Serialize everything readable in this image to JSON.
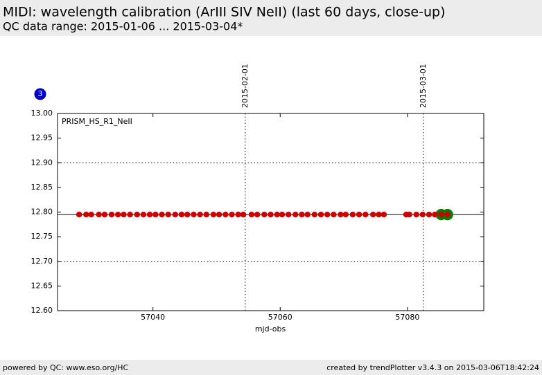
{
  "chart_data": {
    "type": "scatter",
    "title": "MIDI: wavelength calibration (ArIII SIV NeII) (last 60 days, close-up)",
    "subtitle": "QC data range: 2015-01-06 ... 2015-03-04*",
    "badge": "3",
    "panel_label": "PRISM_HS_R1_NeII",
    "xlabel": "mjd-obs",
    "xlim": [
      57025,
      57092
    ],
    "ylim": [
      12.6,
      13.0
    ],
    "xticks": [
      57040,
      57060,
      57080
    ],
    "yticks": [
      {
        "value": 12.6,
        "label": "12.60"
      },
      {
        "value": 12.65,
        "label": "12.65"
      },
      {
        "value": 12.7,
        "label": "12.70"
      },
      {
        "value": 12.75,
        "label": "12.75"
      },
      {
        "value": 12.8,
        "label": "12.80"
      },
      {
        "value": 12.85,
        "label": "12.85"
      },
      {
        "value": 12.9,
        "label": "12.90"
      },
      {
        "value": 12.95,
        "label": "12.95"
      },
      {
        "value": 13.0,
        "label": "13.00"
      }
    ],
    "grid_y": [
      12.7,
      12.9
    ],
    "reference_line": 12.795,
    "date_markers": [
      {
        "label": "2015-02-01",
        "x": 57054.5
      },
      {
        "label": "2015-03-01",
        "x": 57082.5
      }
    ],
    "series": [
      {
        "color": "#cc0000",
        "x": [
          57028.4,
          57029.5,
          57030.3,
          57031.5,
          57032.4,
          57033.5,
          57034.5,
          57035.4,
          57036.4,
          57037.5,
          57038.5,
          57039.5,
          57040.4,
          57041.4,
          57042.4,
          57043.5,
          57044.5,
          57045.4,
          57046.4,
          57047.4,
          57048.4,
          57049.5,
          57050.4,
          57051.4,
          57052.4,
          57053.4,
          57054.2,
          57055.5,
          57056.4,
          57057.5,
          57058.5,
          57059.5,
          57060.3,
          57061.3,
          57062.4,
          57063.4,
          57064.3,
          57065.4,
          57066.4,
          57067.4,
          57068.4,
          57069.5,
          57070.3,
          57071.4,
          57072.4,
          57073.4,
          57074.6,
          57075.5,
          57076.3,
          57079.8,
          57080.3,
          57081.4,
          57082.4,
          57083.4,
          57084.3,
          57085.3,
          57086.3
        ],
        "values": [
          12.795,
          12.795,
          12.795,
          12.795,
          12.795,
          12.795,
          12.795,
          12.795,
          12.795,
          12.795,
          12.795,
          12.795,
          12.795,
          12.795,
          12.795,
          12.795,
          12.795,
          12.795,
          12.795,
          12.795,
          12.795,
          12.795,
          12.795,
          12.795,
          12.795,
          12.795,
          12.795,
          12.795,
          12.795,
          12.795,
          12.795,
          12.795,
          12.795,
          12.795,
          12.795,
          12.795,
          12.795,
          12.795,
          12.795,
          12.795,
          12.795,
          12.795,
          12.795,
          12.795,
          12.795,
          12.795,
          12.795,
          12.795,
          12.795,
          12.795,
          12.795,
          12.795,
          12.795,
          12.795,
          12.795,
          12.795,
          12.795
        ]
      },
      {
        "color": "#008000",
        "x": [
          57085.3,
          57086.3
        ],
        "values": [
          12.795,
          12.795
        ]
      }
    ]
  },
  "footer": {
    "left": "powered by QC: www.eso.org/HC",
    "right": "created by trendPlotter v3.4.3 on 2015-03-06T18:42:24"
  }
}
